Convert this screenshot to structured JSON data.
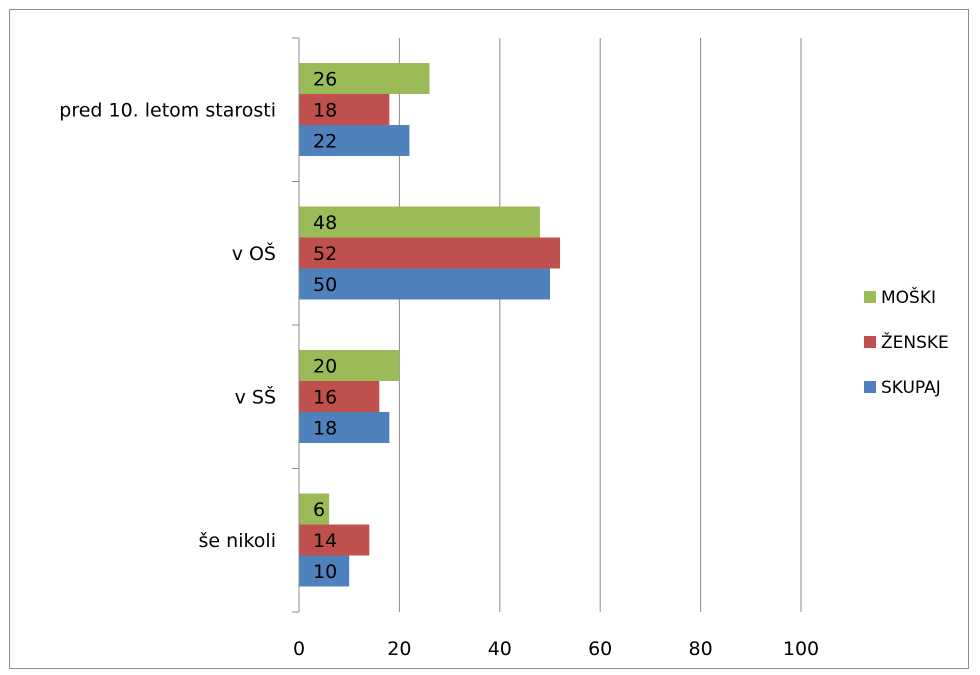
{
  "chart_data": {
    "type": "bar",
    "orientation": "horizontal",
    "title": "",
    "xlabel": "",
    "ylabel": "",
    "categories": [
      "pred 10. letom starosti",
      "v OŠ",
      "v SŠ",
      "še nikoli"
    ],
    "series": [
      {
        "name": "MOŠKI",
        "color": "#9BBB59",
        "values": [
          26,
          48,
          20,
          6
        ]
      },
      {
        "name": "ŽENSKE",
        "color": "#C0504D",
        "values": [
          18,
          52,
          16,
          14
        ]
      },
      {
        "name": "SKUPAJ",
        "color": "#4F81BD",
        "values": [
          22,
          50,
          18,
          10
        ]
      }
    ],
    "xlim": [
      0,
      100
    ],
    "xticks": [
      0,
      20,
      40,
      60,
      80,
      100
    ],
    "grid": true,
    "data_labels": true,
    "legend": {
      "position": "right",
      "order": [
        "MOŠKI",
        "ŽENSKE",
        "SKUPAJ"
      ]
    }
  }
}
